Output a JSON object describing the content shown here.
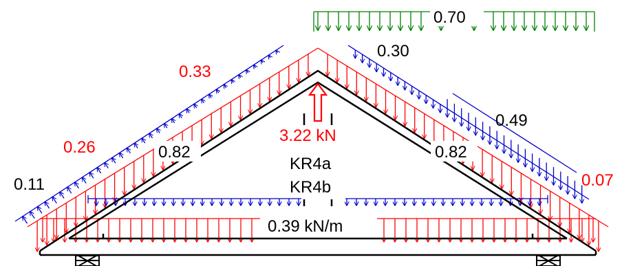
{
  "diagram": {
    "labels": {
      "wind_left_upper": "0.33",
      "wind_left_mid": "0.26",
      "wind_left_low": "0.11",
      "snow_top": "0.70",
      "wind_right_upper": "0.30",
      "wind_right_mid": "0.49",
      "wind_right_low": "0.07",
      "point_load": "3.22 kN",
      "member_left": "0.82",
      "member_right": "0.82",
      "truss_a": "KR4a",
      "truss_b": "KR4b",
      "line_load": "0.39 kN/m"
    },
    "colors": {
      "truss": "#000000",
      "dead_load": "#ff0000",
      "wind_load": "#0000cc",
      "snow_load": "#008000",
      "label_red": "#ff0000",
      "label_black": "#000000"
    }
  }
}
